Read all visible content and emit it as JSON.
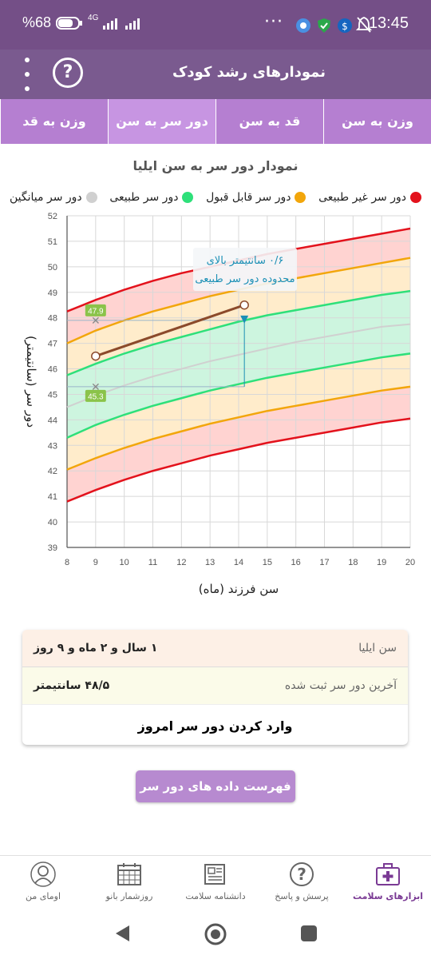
{
  "status": {
    "time": "13:45",
    "battery": "%68",
    "network": "4G"
  },
  "appbar": {
    "title": "نمودارهای رشد کودک"
  },
  "tabs": [
    {
      "label": "وزن به سن"
    },
    {
      "label": "قد به سن"
    },
    {
      "label": "دور سر به سن"
    },
    {
      "label": "وزن به قد"
    }
  ],
  "active_tab": 2,
  "chart_title": "نمودار دور سر به سن ایلیا",
  "legend": [
    {
      "label": "دور سر غیر طبیعی",
      "color": "#e3121c"
    },
    {
      "label": "دور سر قابل قبول",
      "color": "#f2a60b"
    },
    {
      "label": "دور سر طبیعی",
      "color": "#2ee07a"
    },
    {
      "label": "دور سر میانگین",
      "color": "#d0d0d0"
    }
  ],
  "chart_data": {
    "type": "line",
    "xlabel": "سن فرزند (ماه)",
    "ylabel": "دور سر (سانتیمتر)",
    "xlim": [
      8,
      20
    ],
    "ylim": [
      39,
      52
    ],
    "x": [
      8,
      9,
      10,
      11,
      12,
      13,
      14,
      15,
      16,
      17,
      18,
      19,
      20
    ],
    "series": [
      {
        "name": "دور سر غیر طبیعی",
        "values": [
          48.25,
          48.7,
          49.1,
          49.45,
          49.75,
          50.0,
          50.25,
          50.5,
          50.7,
          50.9,
          51.1,
          51.3,
          51.5
        ]
      },
      {
        "name": "دور سر قابل قبول",
        "values": [
          47.0,
          47.5,
          47.9,
          48.25,
          48.55,
          48.85,
          49.1,
          49.35,
          49.55,
          49.75,
          49.95,
          50.15,
          50.35
        ]
      },
      {
        "name": "دور سر طبیعی",
        "values": [
          45.75,
          46.2,
          46.6,
          46.95,
          47.25,
          47.55,
          47.85,
          48.1,
          48.3,
          48.5,
          48.7,
          48.9,
          49.05
        ]
      },
      {
        "name": "دور سر میانگین",
        "values": [
          44.5,
          44.95,
          45.35,
          45.7,
          46.0,
          46.3,
          46.55,
          46.8,
          47.05,
          47.25,
          47.45,
          47.65,
          47.75
        ]
      },
      {
        "name": "دور سر طبیعی",
        "values": [
          43.3,
          43.8,
          44.2,
          44.55,
          44.85,
          45.15,
          45.4,
          45.65,
          45.85,
          46.05,
          46.25,
          46.45,
          46.6
        ]
      },
      {
        "name": "دور سر قابل قبول",
        "values": [
          42.05,
          42.5,
          42.9,
          43.25,
          43.55,
          43.85,
          44.1,
          44.35,
          44.55,
          44.75,
          44.95,
          45.15,
          45.3
        ]
      },
      {
        "name": "دور سر غیر طبیعی",
        "values": [
          40.8,
          41.25,
          41.65,
          42.0,
          42.3,
          42.6,
          42.85,
          43.1,
          43.3,
          43.5,
          43.7,
          43.9,
          44.05
        ]
      }
    ],
    "child": {
      "x": [
        9,
        14.2
      ],
      "y": [
        46.5,
        48.5
      ],
      "color": "#8b4a2b"
    },
    "markers": [
      {
        "x": 9,
        "y": 47.9,
        "label": "47.9"
      },
      {
        "x": 9,
        "y": 45.3,
        "label": "45.3"
      }
    ],
    "annotation": "۰/۶ سانتیمتر بالای محدوده دور سر طبیعی",
    "annotation_lines": [
      "۰/۶ سانتیمتر بالای",
      "محدوده دور سر طبیعی"
    ]
  },
  "info": {
    "age_label": "سن ایلیا",
    "age_value": "۱ سال و ۲ ماه و ۹ روز",
    "last_label": "آخرین دور سر ثبت شده",
    "last_value": "۴۸/۵ سانتیمتر",
    "enter_label": "وارد کردن دور سر امروز"
  },
  "list_button": "فهرست داده های دور سر ایلیا",
  "bottom_nav": [
    {
      "label": "ابزارهای سلامت",
      "icon": "medical-kit-icon"
    },
    {
      "label": "پرسش و پاسخ",
      "icon": "question-icon"
    },
    {
      "label": "دانشنامه سلامت",
      "icon": "newspaper-icon"
    },
    {
      "label": "روزشمار بانو",
      "icon": "calendar-icon"
    },
    {
      "label": "اومای من",
      "icon": "profile-icon"
    }
  ]
}
